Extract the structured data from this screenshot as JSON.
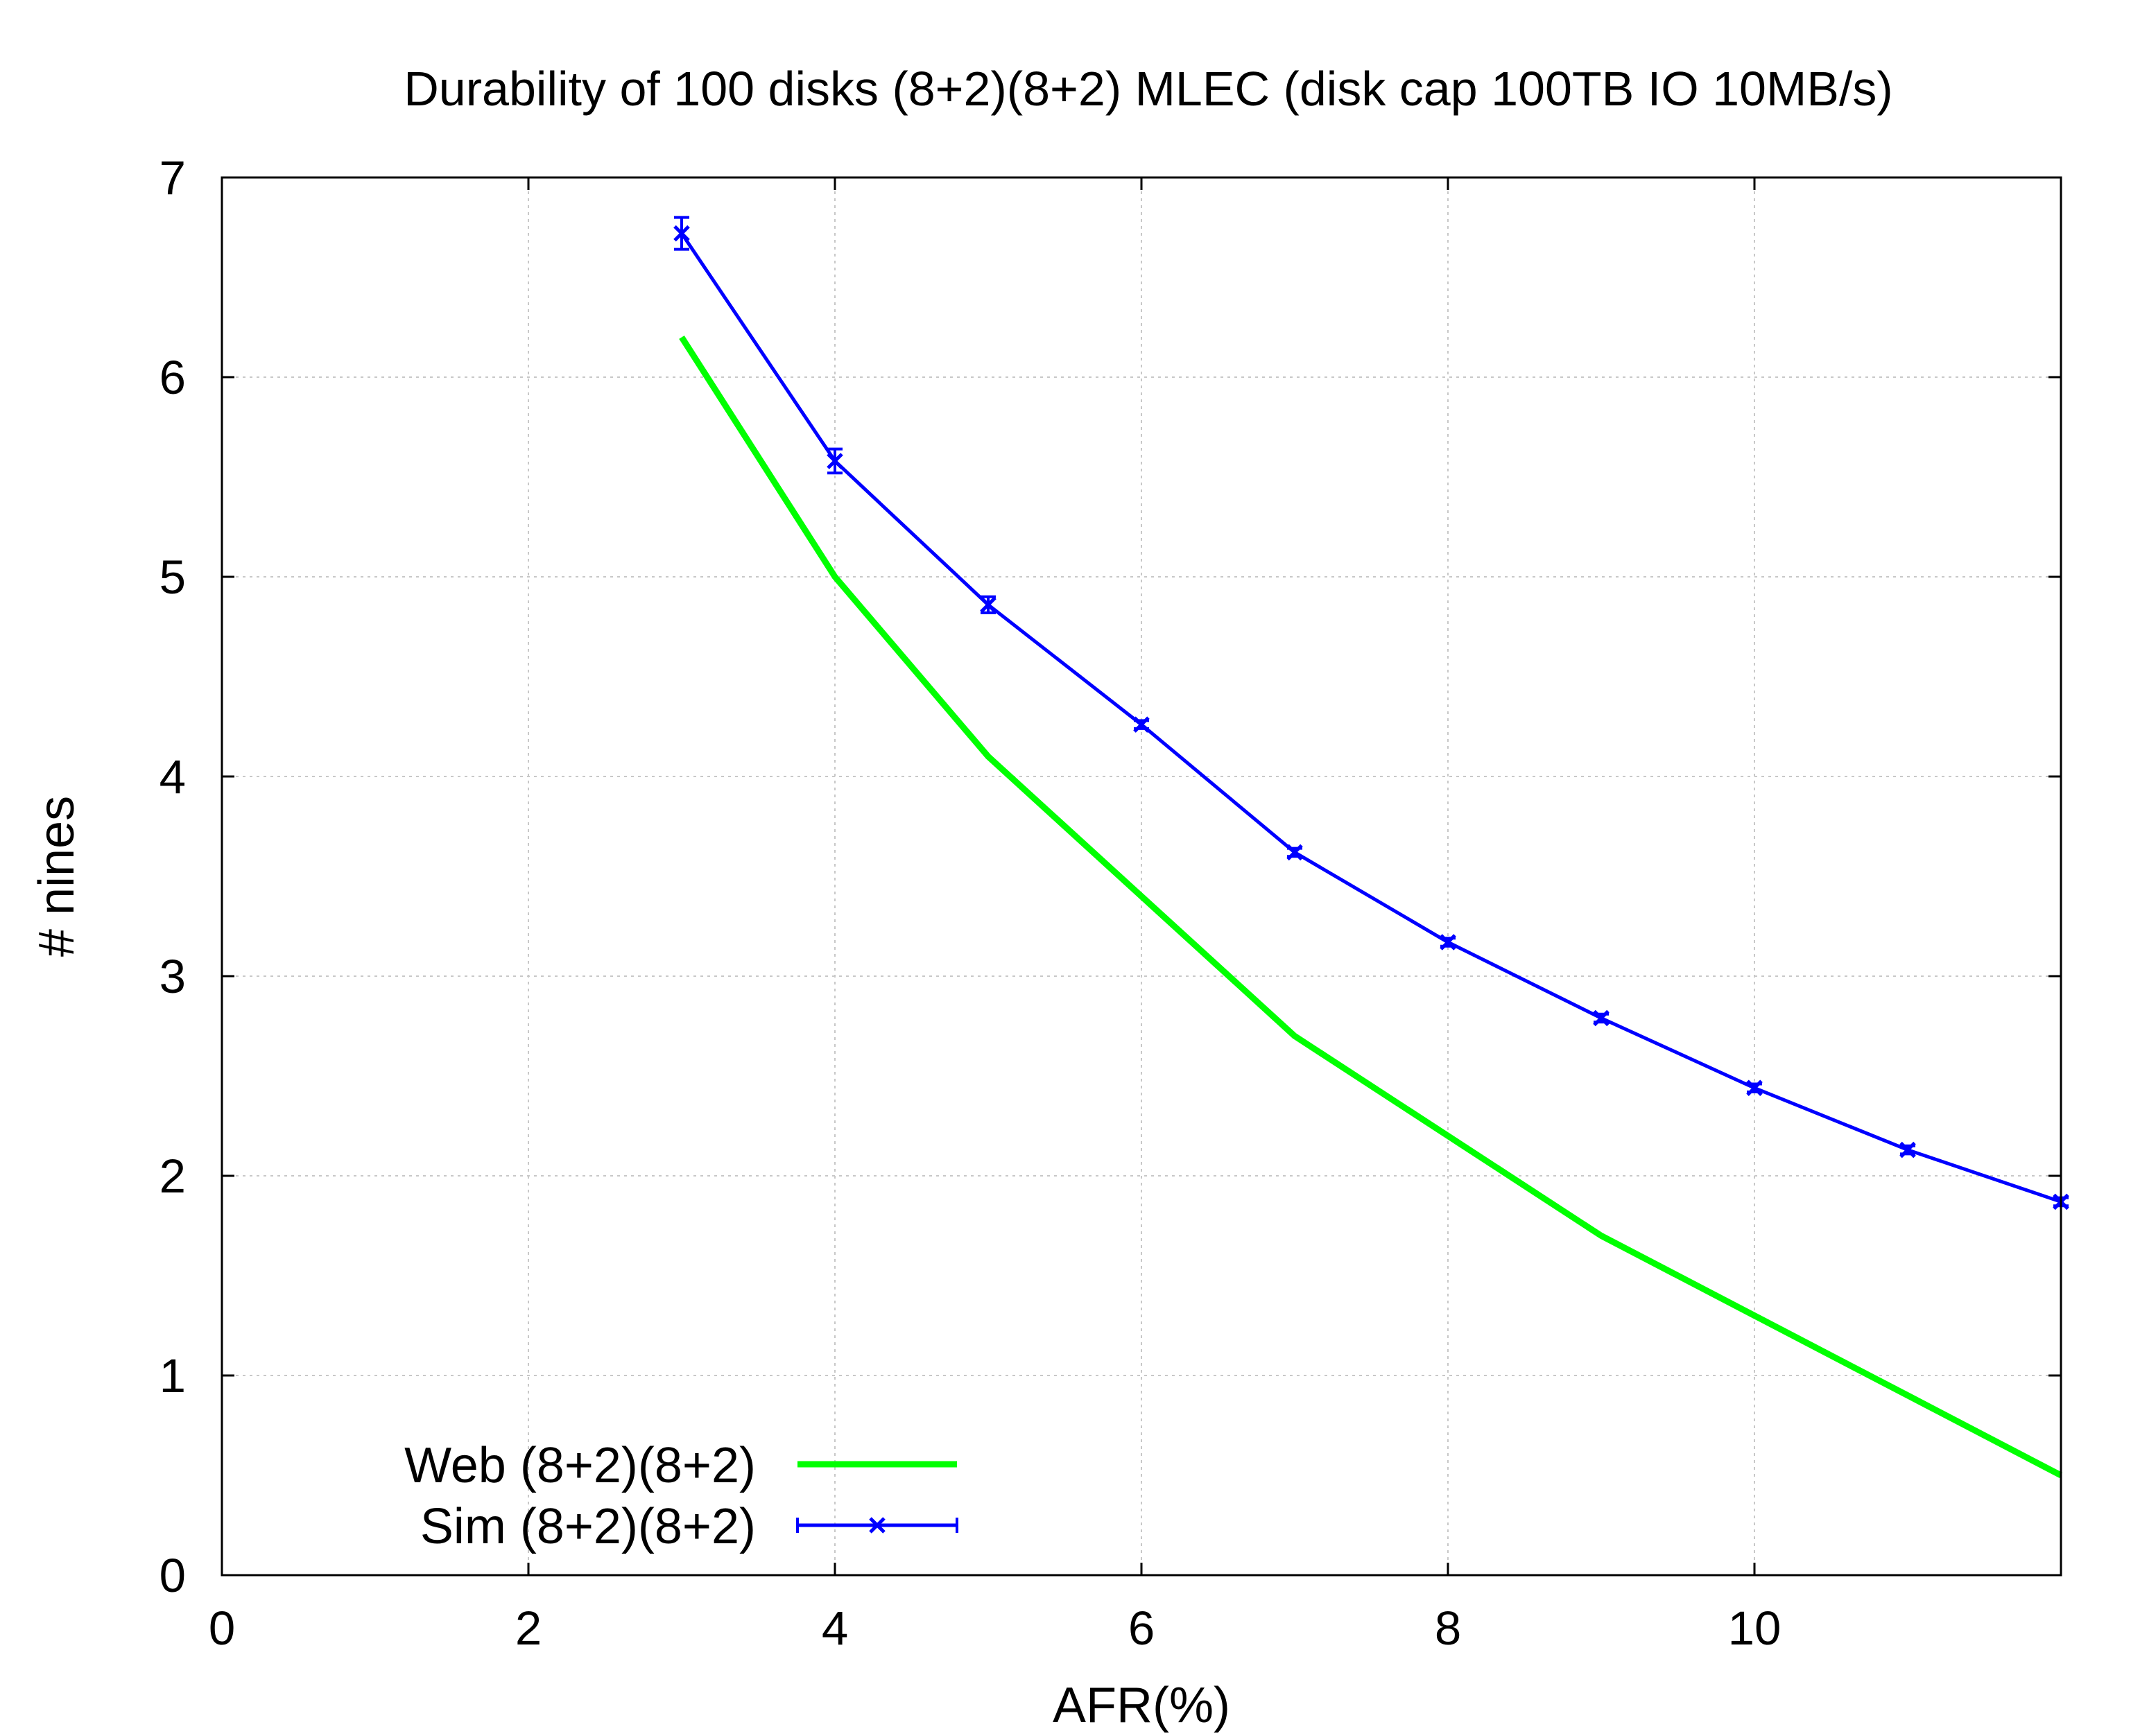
{
  "chart_data": {
    "type": "line",
    "title": "Durability of 100 disks (8+2)(8+2) MLEC (disk cap 100TB IO 10MB/s)",
    "xlabel": "AFR(%)",
    "ylabel": "# nines",
    "xlim": [
      0,
      12
    ],
    "ylim": [
      0,
      7
    ],
    "xticks": [
      0,
      2,
      4,
      6,
      8,
      10
    ],
    "yticks": [
      0,
      1,
      2,
      3,
      4,
      5,
      6,
      7
    ],
    "grid": true,
    "legend_position": "bottom-left",
    "series": [
      {
        "name": "Web (8+2)(8+2)",
        "color": "#00ff00",
        "marker": "none",
        "x": [
          3,
          4,
          5,
          6,
          7,
          8,
          9,
          10,
          11,
          12
        ],
        "y": [
          6.2,
          5.0,
          4.1,
          3.4,
          2.7,
          2.2,
          1.7,
          1.3,
          0.9,
          0.5
        ]
      },
      {
        "name": "Sim (8+2)(8+2)",
        "color": "#0000ff",
        "marker": "x",
        "error_bars": true,
        "x": [
          3,
          4,
          5,
          6,
          7,
          8,
          9,
          10,
          11,
          12
        ],
        "y": [
          6.72,
          5.58,
          4.86,
          4.26,
          3.62,
          3.17,
          2.79,
          2.44,
          2.13,
          1.87
        ],
        "y_err": [
          0.08,
          0.06,
          0.04,
          0.02,
          0.02,
          0.02,
          0.02,
          0.02,
          0.02,
          0.02
        ]
      }
    ]
  }
}
